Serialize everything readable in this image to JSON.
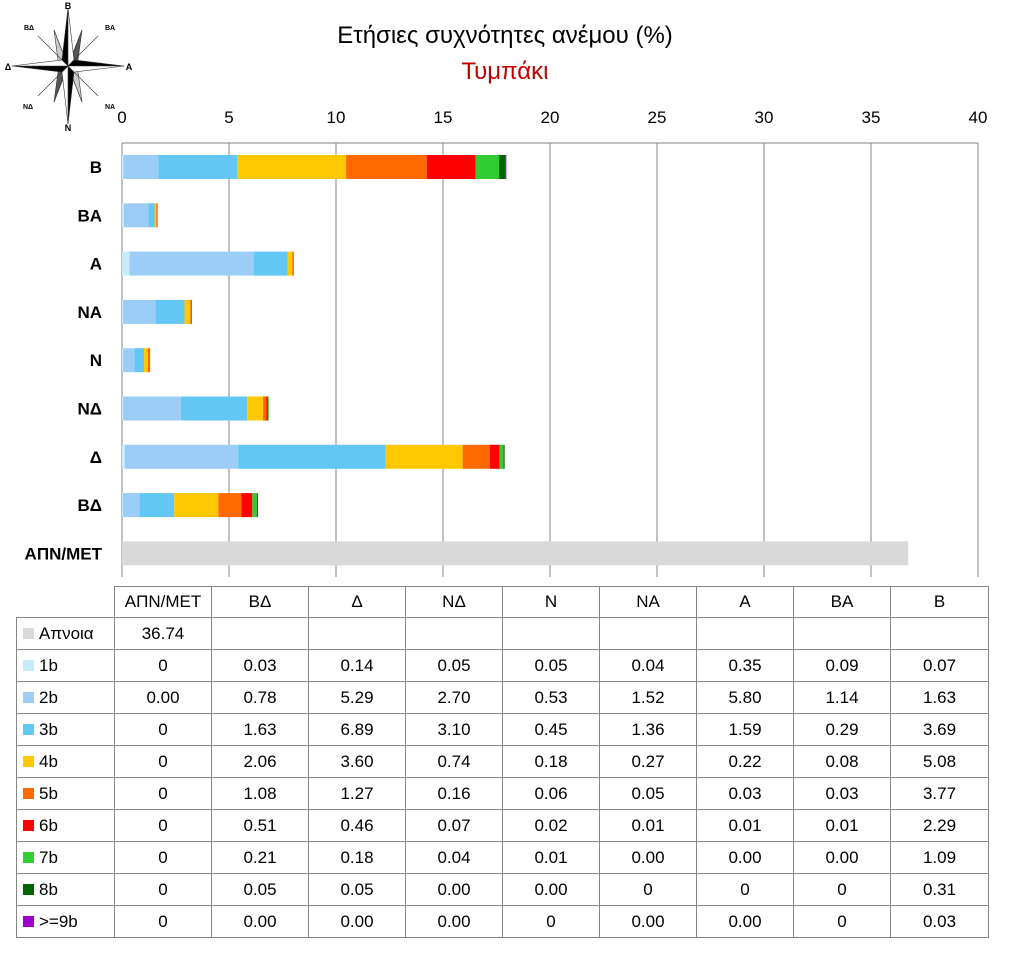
{
  "title": "Ετήσιες συχνότητες ανέμου (%)",
  "subtitle": "Τυμπάκι",
  "compass": {
    "n": "Β",
    "ne": "ΒΑ",
    "e": "Α",
    "se": "ΝΑ",
    "s": "Ν",
    "sw": "ΝΔ",
    "w": "Δ",
    "nw": "ΒΔ"
  },
  "colors": {
    "Απνοια": "#d9d9d9",
    "1b": "#c6ecfb",
    "2b": "#9ccdf6",
    "3b": "#63c7f5",
    "4b": "#ffc800",
    "5b": "#ff6a00",
    "6b": "#ff0000",
    "7b": "#33cc33",
    "8b": "#006400",
    ">=9b": "#9900cc"
  },
  "chart_data": {
    "type": "bar",
    "orientation": "horizontal",
    "stacked": true,
    "title": "Ετήσιες συχνότητες ανέμου (%)",
    "subtitle": "Τυμπάκι",
    "xlim": [
      0,
      40
    ],
    "x_ticks": [
      "0",
      "5",
      "10",
      "15",
      "20",
      "25",
      "30",
      "35",
      "40"
    ],
    "x_axis_position": "top",
    "grid": true,
    "categories": [
      "Β",
      "ΒΑ",
      "Α",
      "ΝΑ",
      "Ν",
      "ΝΔ",
      "Δ",
      "ΒΔ",
      "ΑΠΝ/ΜΕΤ"
    ],
    "series": [
      {
        "name": "Απνοια",
        "values": [
          0,
          0,
          0,
          0,
          0,
          0,
          0,
          0,
          36.74
        ]
      },
      {
        "name": "1b",
        "values": [
          0.07,
          0.09,
          0.35,
          0.04,
          0.05,
          0.05,
          0.14,
          0.03,
          0
        ]
      },
      {
        "name": "2b",
        "values": [
          1.63,
          1.14,
          5.8,
          1.52,
          0.53,
          2.7,
          5.29,
          0.78,
          0.0
        ]
      },
      {
        "name": "3b",
        "values": [
          3.69,
          0.29,
          1.59,
          1.36,
          0.45,
          3.1,
          6.89,
          1.63,
          0
        ]
      },
      {
        "name": "4b",
        "values": [
          5.08,
          0.08,
          0.22,
          0.27,
          0.18,
          0.74,
          3.6,
          2.06,
          0
        ]
      },
      {
        "name": "5b",
        "values": [
          3.77,
          0.03,
          0.03,
          0.05,
          0.06,
          0.16,
          1.27,
          1.08,
          0
        ]
      },
      {
        "name": "6b",
        "values": [
          2.29,
          0.01,
          0.01,
          0.01,
          0.02,
          0.07,
          0.46,
          0.51,
          0
        ]
      },
      {
        "name": "7b",
        "values": [
          1.09,
          0.0,
          0.0,
          0.0,
          0.01,
          0.04,
          0.18,
          0.21,
          0
        ]
      },
      {
        "name": "8b",
        "values": [
          0.31,
          0,
          0,
          0,
          0.0,
          0.0,
          0.05,
          0.05,
          0
        ]
      },
      {
        "name": ">=9b",
        "values": [
          0.03,
          0,
          0.0,
          0.0,
          0,
          0.0,
          0.0,
          0.0,
          0
        ]
      }
    ]
  },
  "table": {
    "columns": [
      "ΑΠΝ/ΜΕΤ",
      "ΒΔ",
      "Δ",
      "ΝΔ",
      "Ν",
      "ΝΑ",
      "Α",
      "ΒΑ",
      "Β"
    ],
    "rows": [
      {
        "name": "Απνοια",
        "cells": [
          "36.74",
          "",
          "",
          "",
          "",
          "",
          "",
          "",
          ""
        ]
      },
      {
        "name": "1b",
        "cells": [
          "0",
          "0.03",
          "0.14",
          "0.05",
          "0.05",
          "0.04",
          "0.35",
          "0.09",
          "0.07"
        ]
      },
      {
        "name": "2b",
        "cells": [
          "0.00",
          "0.78",
          "5.29",
          "2.70",
          "0.53",
          "1.52",
          "5.80",
          "1.14",
          "1.63"
        ]
      },
      {
        "name": "3b",
        "cells": [
          "0",
          "1.63",
          "6.89",
          "3.10",
          "0.45",
          "1.36",
          "1.59",
          "0.29",
          "3.69"
        ]
      },
      {
        "name": "4b",
        "cells": [
          "0",
          "2.06",
          "3.60",
          "0.74",
          "0.18",
          "0.27",
          "0.22",
          "0.08",
          "5.08"
        ]
      },
      {
        "name": "5b",
        "cells": [
          "0",
          "1.08",
          "1.27",
          "0.16",
          "0.06",
          "0.05",
          "0.03",
          "0.03",
          "3.77"
        ]
      },
      {
        "name": "6b",
        "cells": [
          "0",
          "0.51",
          "0.46",
          "0.07",
          "0.02",
          "0.01",
          "0.01",
          "0.01",
          "2.29"
        ]
      },
      {
        "name": "7b",
        "cells": [
          "0",
          "0.21",
          "0.18",
          "0.04",
          "0.01",
          "0.00",
          "0.00",
          "0.00",
          "1.09"
        ]
      },
      {
        "name": "8b",
        "cells": [
          "0",
          "0.05",
          "0.05",
          "0.00",
          "0.00",
          "0",
          "0",
          "0",
          "0.31"
        ]
      },
      {
        "name": ">=9b",
        "cells": [
          "0",
          "0.00",
          "0.00",
          "0.00",
          "0",
          "0.00",
          "0.00",
          "0",
          "0.03"
        ]
      }
    ]
  }
}
